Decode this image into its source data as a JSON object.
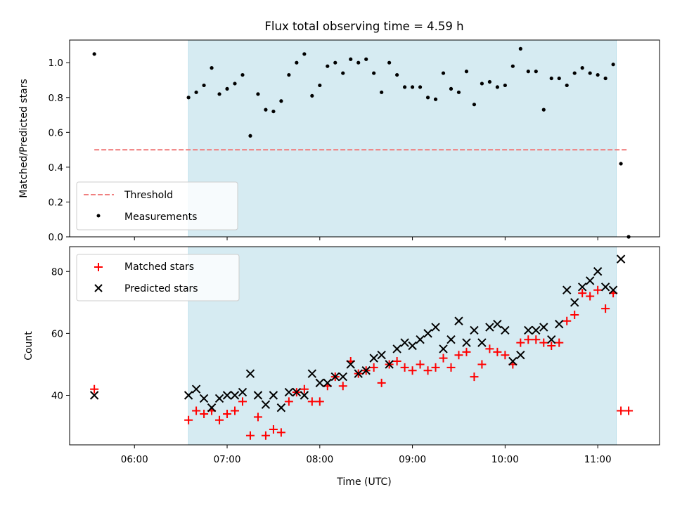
{
  "title": "Flux total observing time = 4.59 h",
  "xlabel": "Time (UTC)",
  "colors": {
    "shade": "#add8e6",
    "threshold": "#f08080",
    "measurement": "#000000",
    "matched": "#ff0000",
    "predicted": "#000000"
  },
  "chart_data": [
    {
      "type": "scatter",
      "panel": "top",
      "ylabel": "Matched/Predicted stars",
      "xlim": [
        "05:18",
        "11:40"
      ],
      "ylim": [
        0,
        1.13
      ],
      "x_ticks": [
        "06:00",
        "07:00",
        "08:00",
        "09:00",
        "10:00",
        "11:00"
      ],
      "y_ticks": [
        "0.0",
        "0.2",
        "0.4",
        "0.6",
        "0.8",
        "1.0"
      ],
      "shaded_interval": [
        "06:35",
        "11:12"
      ],
      "legend_position": "lower left",
      "series": [
        {
          "name": "Threshold",
          "style": "dashed-line",
          "x": [
            "05:34",
            "11:20"
          ],
          "y": [
            0.5,
            0.5
          ]
        },
        {
          "name": "Measurements",
          "style": "dot",
          "x": [
            "05:34",
            "06:35",
            "06:40",
            "06:45",
            "06:50",
            "06:55",
            "07:00",
            "07:05",
            "07:10",
            "07:15",
            "07:20",
            "07:25",
            "07:30",
            "07:35",
            "07:40",
            "07:45",
            "07:50",
            "07:55",
            "08:00",
            "08:05",
            "08:10",
            "08:15",
            "08:20",
            "08:25",
            "08:30",
            "08:35",
            "08:40",
            "08:45",
            "08:50",
            "08:55",
            "09:00",
            "09:05",
            "09:10",
            "09:15",
            "09:20",
            "09:25",
            "09:30",
            "09:35",
            "09:40",
            "09:45",
            "09:50",
            "09:55",
            "10:00",
            "10:05",
            "10:10",
            "10:15",
            "10:20",
            "10:25",
            "10:30",
            "10:35",
            "10:40",
            "10:45",
            "10:50",
            "10:55",
            "11:00",
            "11:05",
            "11:10",
            "11:15",
            "11:20"
          ],
          "y": [
            1.05,
            0.8,
            0.83,
            0.87,
            0.97,
            0.82,
            0.85,
            0.88,
            0.93,
            0.58,
            0.82,
            0.73,
            0.72,
            0.78,
            0.93,
            1.0,
            1.05,
            0.81,
            0.87,
            0.98,
            1.0,
            0.94,
            1.02,
            1.0,
            1.02,
            0.94,
            0.83,
            1.0,
            0.93,
            0.86,
            0.86,
            0.86,
            0.8,
            0.79,
            0.94,
            0.85,
            0.83,
            0.95,
            0.76,
            0.88,
            0.89,
            0.86,
            0.87,
            0.98,
            1.08,
            0.95,
            0.95,
            0.73,
            0.91,
            0.91,
            0.87,
            0.94,
            0.97,
            0.94,
            0.93,
            0.91,
            0.99,
            0.42,
            0.0
          ]
        }
      ]
    },
    {
      "type": "scatter",
      "panel": "bottom",
      "ylabel": "Count",
      "xlim": [
        "05:18",
        "11:40"
      ],
      "ylim": [
        24,
        88
      ],
      "x_ticks": [
        "06:00",
        "07:00",
        "08:00",
        "09:00",
        "10:00",
        "11:00"
      ],
      "y_ticks": [
        "40",
        "60",
        "80"
      ],
      "shaded_interval": [
        "06:35",
        "11:12"
      ],
      "legend_position": "upper left",
      "series": [
        {
          "name": "Matched stars",
          "style": "plus",
          "x": [
            "05:34",
            "06:35",
            "06:40",
            "06:45",
            "06:50",
            "06:55",
            "07:00",
            "07:05",
            "07:10",
            "07:15",
            "07:20",
            "07:25",
            "07:30",
            "07:35",
            "07:40",
            "07:45",
            "07:50",
            "07:55",
            "08:00",
            "08:05",
            "08:10",
            "08:15",
            "08:20",
            "08:25",
            "08:30",
            "08:35",
            "08:40",
            "08:45",
            "08:50",
            "08:55",
            "09:00",
            "09:05",
            "09:10",
            "09:15",
            "09:20",
            "09:25",
            "09:30",
            "09:35",
            "09:40",
            "09:45",
            "09:50",
            "09:55",
            "10:00",
            "10:05",
            "10:10",
            "10:15",
            "10:20",
            "10:25",
            "10:30",
            "10:35",
            "10:40",
            "10:45",
            "10:50",
            "10:55",
            "11:00",
            "11:05",
            "11:10",
            "11:15",
            "11:20"
          ],
          "y": [
            42,
            32,
            35,
            34,
            35,
            32,
            34,
            35,
            38,
            27,
            33,
            27,
            29,
            28,
            38,
            41,
            42,
            38,
            38,
            43,
            46,
            43,
            51,
            47,
            48,
            49,
            44,
            50,
            51,
            49,
            48,
            50,
            48,
            49,
            52,
            49,
            53,
            54,
            46,
            50,
            55,
            54,
            53,
            50,
            57,
            58,
            58,
            57,
            56,
            57,
            64,
            66,
            73,
            72,
            74,
            68,
            73,
            35,
            35
          ]
        },
        {
          "name": "Predicted stars",
          "style": "x",
          "x": [
            "05:34",
            "06:35",
            "06:40",
            "06:45",
            "06:50",
            "06:55",
            "07:00",
            "07:05",
            "07:10",
            "07:15",
            "07:20",
            "07:25",
            "07:30",
            "07:35",
            "07:40",
            "07:45",
            "07:50",
            "07:55",
            "08:00",
            "08:05",
            "08:10",
            "08:15",
            "08:20",
            "08:25",
            "08:30",
            "08:35",
            "08:40",
            "08:45",
            "08:50",
            "08:55",
            "09:00",
            "09:05",
            "09:10",
            "09:15",
            "09:20",
            "09:25",
            "09:30",
            "09:35",
            "09:40",
            "09:45",
            "09:50",
            "09:55",
            "10:00",
            "10:05",
            "10:10",
            "10:15",
            "10:20",
            "10:25",
            "10:30",
            "10:35",
            "10:40",
            "10:45",
            "10:50",
            "10:55",
            "11:00",
            "11:05",
            "11:10",
            "11:15"
          ],
          "y": [
            40,
            40,
            42,
            39,
            36,
            39,
            40,
            40,
            41,
            47,
            40,
            37,
            40,
            36,
            41,
            41,
            40,
            47,
            44,
            44,
            46,
            46,
            50,
            47,
            48,
            52,
            53,
            50,
            55,
            57,
            56,
            58,
            60,
            62,
            55,
            58,
            64,
            57,
            61,
            57,
            62,
            63,
            61,
            51,
            53,
            61,
            61,
            62,
            58,
            63,
            74,
            70,
            75,
            77,
            80,
            75,
            74,
            84
          ]
        }
      ]
    }
  ]
}
